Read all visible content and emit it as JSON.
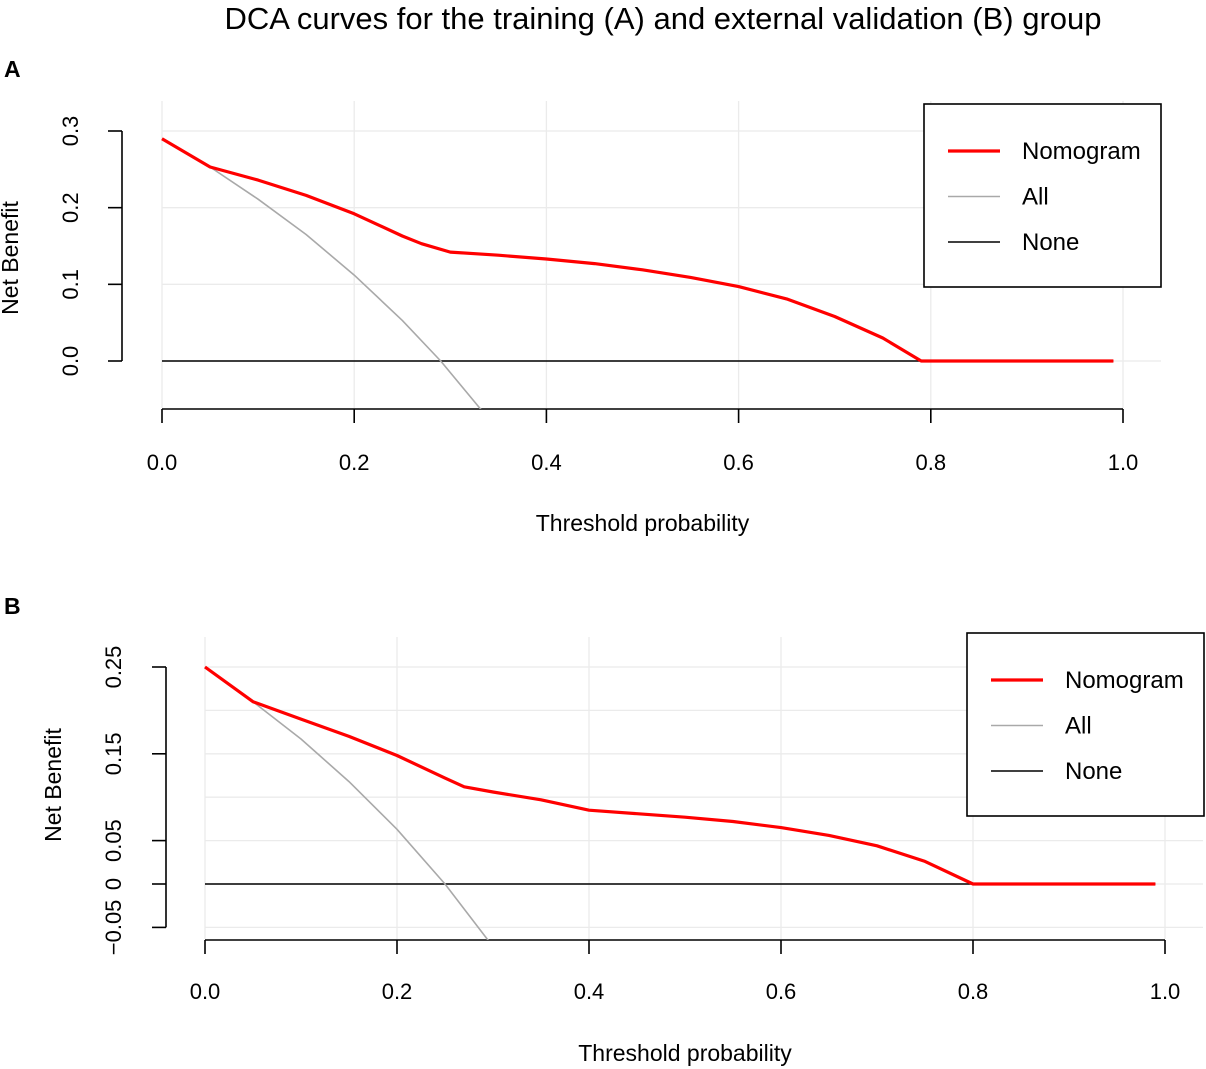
{
  "figure_title": "DCA curves for the training (A) and external validation (B) group",
  "colors": {
    "nomogram": "#ff0000",
    "all": "#a9a9a9",
    "none": "#000000",
    "grid": "#ebebeb"
  },
  "chart_data": [
    {
      "type": "line",
      "panel_label": "A",
      "title": "DCA curves for the training (A) and external validation (B) group",
      "xlabel": "Threshold probability",
      "ylabel": "Net Benefit",
      "xlim": [
        0,
        1
      ],
      "ylim": [
        -0.06,
        0.3
      ],
      "x_ticks": [
        "0.0",
        "0.2",
        "0.4",
        "0.6",
        "0.8",
        "1.0"
      ],
      "y_ticks": [
        "0.0",
        "0.1",
        "0.2",
        "0.3"
      ],
      "grid": true,
      "legend": {
        "position": "top-right",
        "entries": [
          "Nomogram",
          "All",
          "None"
        ]
      },
      "series": [
        {
          "name": "Nomogram",
          "color": "#ff0000",
          "x": [
            0,
            0.05,
            0.1,
            0.15,
            0.2,
            0.25,
            0.27,
            0.3,
            0.35,
            0.4,
            0.45,
            0.5,
            0.55,
            0.6,
            0.65,
            0.7,
            0.75,
            0.79,
            0.85,
            0.9,
            0.95,
            0.99
          ],
          "y": [
            0.29,
            0.253,
            0.236,
            0.216,
            0.192,
            0.163,
            0.153,
            0.142,
            0.138,
            0.133,
            0.127,
            0.119,
            0.109,
            0.097,
            0.081,
            0.058,
            0.03,
            0.0,
            0.0,
            0.0,
            0.0,
            0.0
          ]
        },
        {
          "name": "All",
          "color": "#a9a9a9",
          "x": [
            0,
            0.05,
            0.1,
            0.15,
            0.2,
            0.25,
            0.29,
            0.333
          ],
          "y": [
            0.29,
            0.253,
            0.211,
            0.165,
            0.112,
            0.053,
            0.0,
            -0.065
          ]
        },
        {
          "name": "None",
          "color": "#000000",
          "x": [
            0,
            0.99
          ],
          "y": [
            0,
            0
          ]
        }
      ]
    },
    {
      "type": "line",
      "panel_label": "B",
      "title": "",
      "xlabel": "Threshold probability",
      "ylabel": "Net Benefit",
      "xlim": [
        0,
        1
      ],
      "ylim": [
        -0.05,
        0.25
      ],
      "x_ticks": [
        "0.0",
        "0.2",
        "0.4",
        "0.6",
        "0.8",
        "1.0"
      ],
      "y_ticks": [
        "−0.05",
        "0",
        "0.05",
        "0.15",
        "0.25"
      ],
      "grid": true,
      "legend": {
        "position": "top-right",
        "entries": [
          "Nomogram",
          "All",
          "None"
        ]
      },
      "series": [
        {
          "name": "Nomogram",
          "color": "#ff0000",
          "x": [
            0,
            0.05,
            0.1,
            0.15,
            0.2,
            0.25,
            0.27,
            0.3,
            0.35,
            0.4,
            0.45,
            0.5,
            0.55,
            0.6,
            0.65,
            0.7,
            0.75,
            0.8,
            0.85,
            0.9,
            0.95,
            0.99
          ],
          "y": [
            0.25,
            0.21,
            0.19,
            0.17,
            0.148,
            0.122,
            0.112,
            0.106,
            0.097,
            0.085,
            0.081,
            0.077,
            0.072,
            0.065,
            0.056,
            0.044,
            0.026,
            0.0,
            0.0,
            0.0,
            0.0,
            0.0
          ]
        },
        {
          "name": "All",
          "color": "#a9a9a9",
          "x": [
            0,
            0.05,
            0.1,
            0.15,
            0.2,
            0.25,
            0.295
          ],
          "y": [
            0.25,
            0.21,
            0.167,
            0.118,
            0.063,
            0.0,
            -0.065
          ]
        },
        {
          "name": "None",
          "color": "#000000",
          "x": [
            0,
            0.99
          ],
          "y": [
            0,
            0
          ]
        }
      ]
    }
  ]
}
